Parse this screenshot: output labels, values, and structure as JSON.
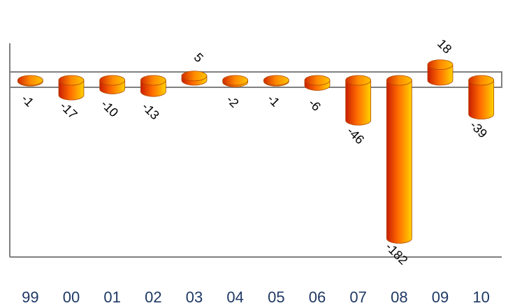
{
  "chart_data": {
    "type": "bar",
    "style": "3d-cylinder",
    "categories": [
      "99",
      "00",
      "01",
      "02",
      "03",
      "04",
      "05",
      "06",
      "07",
      "08",
      "09",
      "10"
    ],
    "values": [
      -1,
      -17,
      -10,
      -13,
      5,
      -2,
      -1,
      -6,
      -46,
      -182,
      18,
      -39
    ],
    "data_labels": [
      "-1",
      "-17",
      "-10",
      "-13",
      "5",
      "-2",
      "-1",
      "-6",
      "-46",
      "-182",
      "18",
      "-39"
    ],
    "title": "",
    "xlabel": "",
    "ylabel": "",
    "ylim": [
      -200,
      40
    ],
    "grid": false,
    "legend": "none",
    "colors": {
      "bar_dark": "#c81e00",
      "bar_mid": "#ff7a00",
      "bar_light": "#ffd000",
      "axis": "#808080",
      "category_text": "#1f3864",
      "label_text": "#000000"
    }
  }
}
